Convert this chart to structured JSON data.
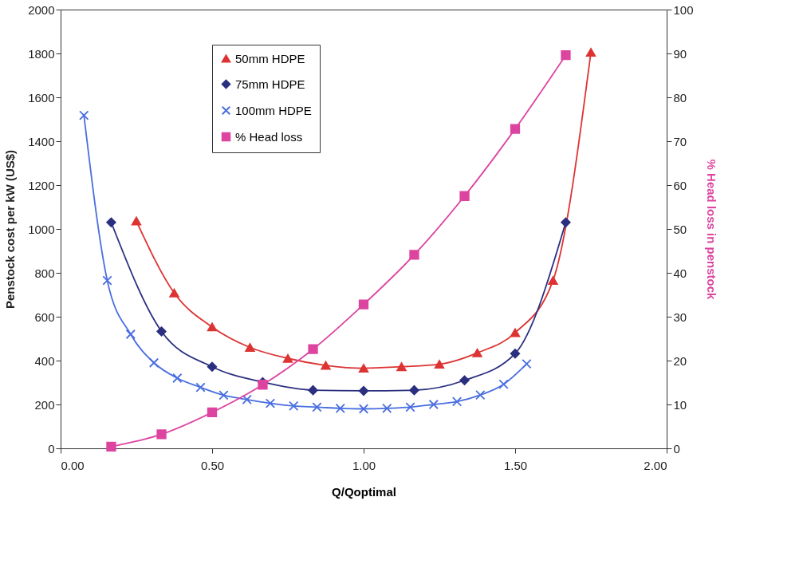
{
  "chart_data": {
    "type": "line",
    "xlabel": "Q/Qoptimal",
    "ylabel": "Penstock cost per kW  (US$)",
    "y2label": "% Head loss in penstock",
    "xlim": [
      0,
      2
    ],
    "xticks": [
      {
        "value": 0,
        "label": "0.00"
      },
      {
        "value": 0.5,
        "label": "0.50"
      },
      {
        "value": 1,
        "label": "1.00"
      },
      {
        "value": 1.5,
        "label": "1.50"
      },
      {
        "value": 2,
        "label": "2.00"
      }
    ],
    "ylim": [
      0,
      2000
    ],
    "yticks": [
      0,
      200,
      400,
      600,
      800,
      1000,
      1200,
      1400,
      1600,
      1800,
      2000
    ],
    "y2lim": [
      0,
      100
    ],
    "y2ticks": [
      0,
      10,
      20,
      30,
      40,
      50,
      60,
      70,
      80,
      90,
      100
    ],
    "legend": "top left",
    "grid": false,
    "series": [
      {
        "name": "50mm HDPE",
        "color": "#dd3333",
        "marker": "triangle",
        "x": [
          0.25,
          0.375,
          0.5,
          0.625,
          0.75,
          0.875,
          1.0,
          1.125,
          1.25,
          1.375,
          1.5,
          1.625,
          1.75
        ],
        "values": [
          1036,
          708,
          553,
          460,
          410,
          378,
          365,
          372,
          383,
          435,
          527,
          765,
          1805
        ]
      },
      {
        "name": "75mm HDPE",
        "color": "#2b2f80",
        "marker": "diamond",
        "x": [
          0.167,
          0.333,
          0.5,
          0.667,
          0.833,
          1.0,
          1.167,
          1.333,
          1.5,
          1.667
        ],
        "values": [
          1030,
          533,
          372,
          302,
          265,
          262,
          265,
          310,
          432,
          1030
        ]
      },
      {
        "name": "100mm HDPE",
        "color": "#4a6ee0",
        "marker": "cross",
        "x": [
          0.077,
          0.154,
          0.231,
          0.308,
          0.385,
          0.462,
          0.538,
          0.615,
          0.692,
          0.769,
          0.846,
          0.923,
          1.0,
          1.077,
          1.154,
          1.231,
          1.308,
          1.385,
          1.462,
          1.538
        ],
        "values": [
          1518,
          765,
          520,
          390,
          320,
          278,
          242,
          222,
          205,
          193,
          188,
          182,
          180,
          182,
          188,
          200,
          213,
          243,
          292,
          385
        ]
      },
      {
        "name": "% Head loss",
        "color": "#dd44a0",
        "marker": "square",
        "axis": "y2",
        "x": [
          0.167,
          0.333,
          0.5,
          0.667,
          0.833,
          1.0,
          1.167,
          1.333,
          1.5,
          1.667
        ],
        "values": [
          0.4,
          3.2,
          8.2,
          14.5,
          22.6,
          32.8,
          44.1,
          57.5,
          72.8,
          89.6
        ]
      }
    ]
  }
}
